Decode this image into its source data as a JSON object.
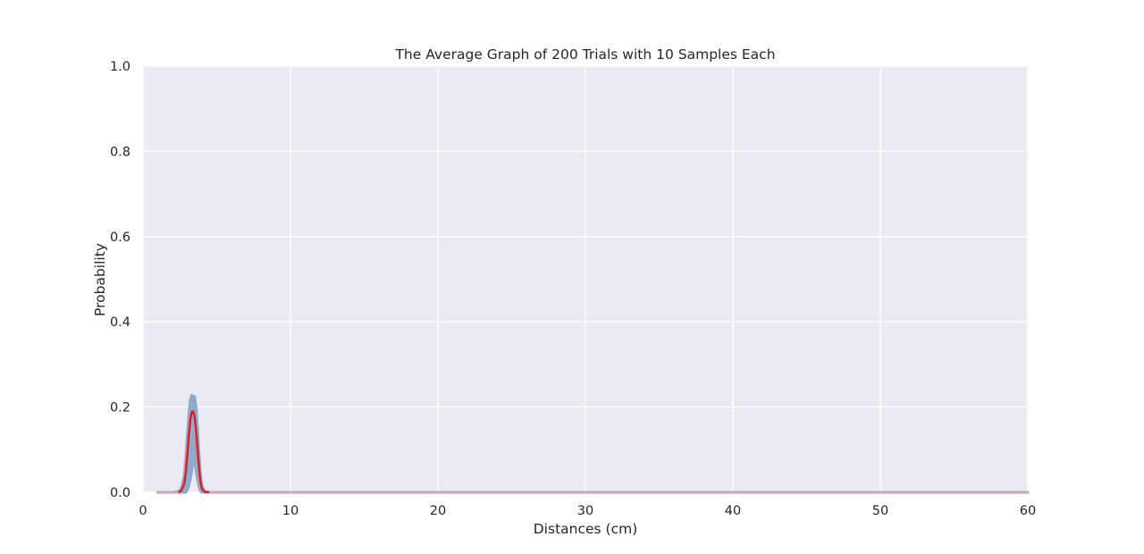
{
  "chart_data": {
    "type": "line",
    "title": "The Average Graph of 200 Trials with 10 Samples Each",
    "xlabel": "Distances (cm)",
    "ylabel": "Probability",
    "xlim": [
      0,
      60
    ],
    "ylim": [
      0,
      1.0
    ],
    "x_ticks": [
      "0",
      "10",
      "20",
      "30",
      "40",
      "50",
      "60"
    ],
    "y_ticks": [
      "0.0",
      "0.2",
      "0.4",
      "0.6",
      "0.8",
      "1.0"
    ],
    "grid": true,
    "colors": {
      "plot_background": "#eaeaf2",
      "grid": "#ffffff",
      "band": "#8faacc",
      "mean_line": "#e41a1c",
      "baseline": "#f4a3a3"
    },
    "series": [
      {
        "type": "area",
        "x": [
          1.0,
          2.0,
          2.4,
          2.6,
          2.8,
          2.9,
          3.0,
          3.1,
          3.2,
          3.3,
          3.4,
          3.5,
          3.6,
          3.7,
          3.8,
          3.9,
          4.0,
          4.2,
          4.5,
          5.0,
          60.0
        ],
        "lower": [
          0,
          0,
          0,
          0,
          0,
          0,
          0.005,
          0.015,
          0.03,
          0.05,
          0.07,
          0.07,
          0.05,
          0.03,
          0.012,
          0.003,
          0,
          0,
          0,
          0,
          0
        ],
        "upper": [
          0,
          0,
          0.002,
          0.01,
          0.04,
          0.08,
          0.13,
          0.18,
          0.215,
          0.228,
          0.226,
          0.225,
          0.2,
          0.15,
          0.09,
          0.04,
          0.015,
          0.002,
          0,
          0,
          0
        ]
      },
      {
        "type": "line",
        "x": [
          1.0,
          2.0,
          2.4,
          2.6,
          2.8,
          2.9,
          3.0,
          3.1,
          3.2,
          3.3,
          3.4,
          3.5,
          3.6,
          3.7,
          3.8,
          3.9,
          4.0,
          4.2,
          4.5,
          5.0,
          60.0
        ],
        "y": [
          0,
          0,
          0,
          0.004,
          0.02,
          0.045,
          0.085,
          0.13,
          0.168,
          0.188,
          0.19,
          0.178,
          0.145,
          0.1,
          0.058,
          0.025,
          0.008,
          0.001,
          0,
          0,
          0
        ]
      }
    ]
  }
}
